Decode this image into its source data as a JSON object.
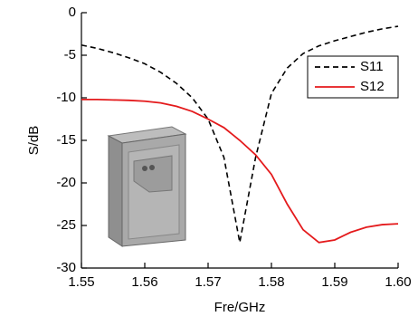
{
  "chart_data": {
    "type": "line",
    "x_label": "Fre/GHz",
    "y_label": "S/dB",
    "x": [
      1.55,
      1.5525,
      1.555,
      1.5575,
      1.56,
      1.5625,
      1.565,
      1.5675,
      1.57,
      1.5725,
      1.575,
      1.5775,
      1.58,
      1.5825,
      1.585,
      1.5875,
      1.59,
      1.5925,
      1.595,
      1.5975,
      1.6
    ],
    "series": [
      {
        "name": "S11",
        "color": "#000000",
        "dash": true,
        "values": [
          -3.8,
          -4.2,
          -4.7,
          -5.3,
          -6.0,
          -7.0,
          -8.3,
          -10.0,
          -12.5,
          -17,
          -27,
          -17,
          -9.5,
          -6.5,
          -4.8,
          -3.9,
          -3.3,
          -2.8,
          -2.3,
          -1.9,
          -1.6
        ]
      },
      {
        "name": "S12",
        "color": "#e41a1c",
        "dash": false,
        "values": [
          -10.2,
          -10.2,
          -10.25,
          -10.3,
          -10.4,
          -10.6,
          -11.0,
          -11.6,
          -12.5,
          -13.5,
          -15,
          -16.7,
          -19,
          -22.5,
          -25.5,
          -27,
          -26.7,
          -25.8,
          -25.2,
          -24.9,
          -24.8
        ]
      }
    ],
    "xlim": [
      1.55,
      1.6
    ],
    "xticks": [
      1.55,
      1.56,
      1.57,
      1.58,
      1.59,
      {
        "value": 1.6,
        "label": "1.60"
      }
    ],
    "ylim": [
      -30,
      0
    ],
    "yticks": [
      0,
      -5,
      -10,
      -15,
      -20,
      -25,
      -30
    ],
    "legend": "upper right"
  }
}
